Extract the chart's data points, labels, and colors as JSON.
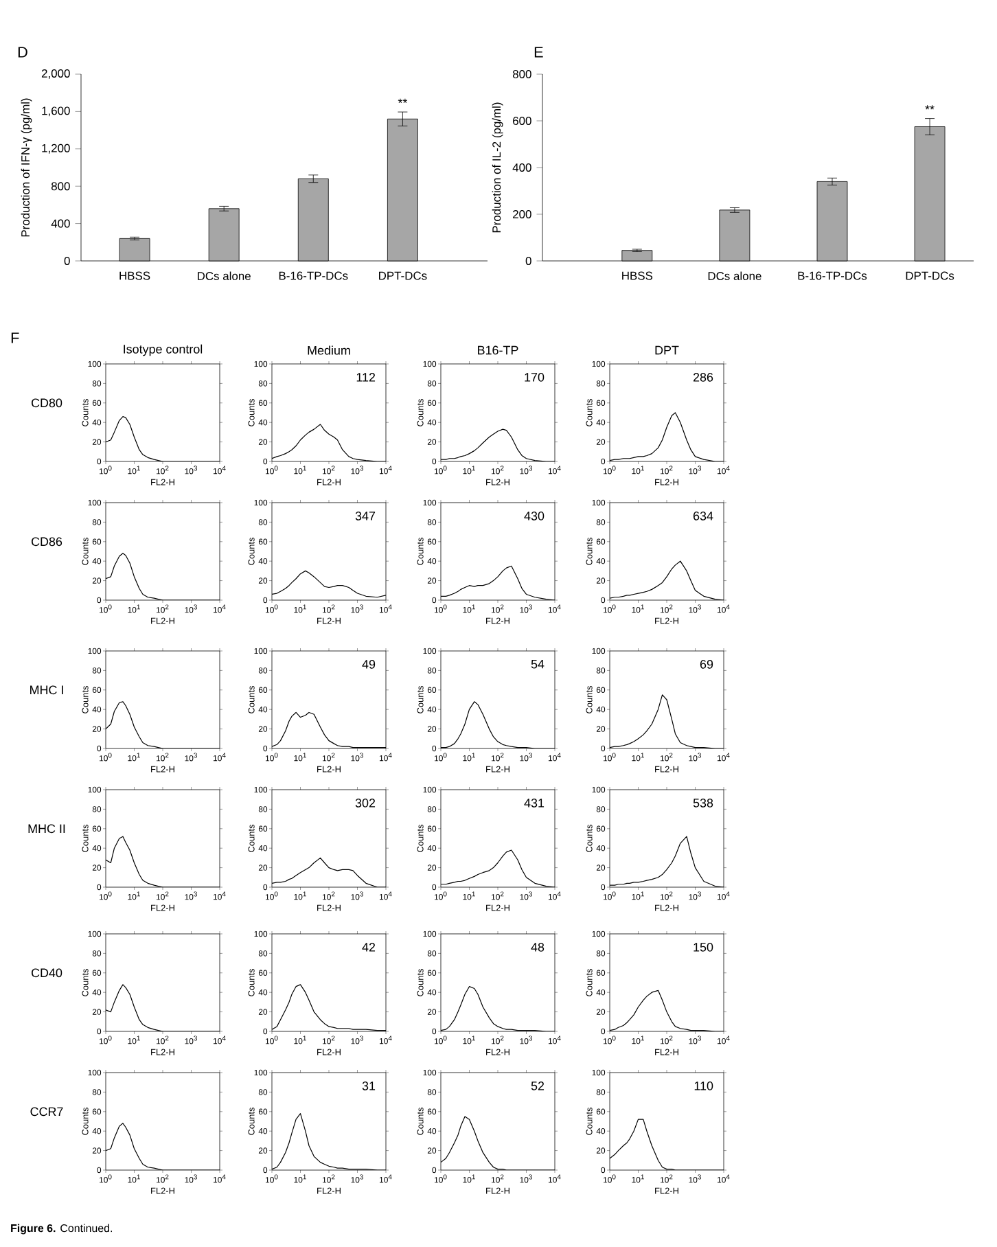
{
  "chart_data": [
    {
      "type": "bar",
      "title": "D",
      "categories": [
        "HBSS",
        "DCs alone",
        "B-16-TP-DCs",
        "DPT-DCs"
      ],
      "values": [
        240,
        560,
        880,
        1520
      ],
      "errors": [
        15,
        25,
        40,
        75
      ],
      "color": "#a6a6a6",
      "ylabel": "Production of IFN-γ (pg/ml)",
      "ylim": [
        0,
        2000
      ],
      "yticks": [
        0,
        400,
        800,
        {
          "value": 1200,
          "label": "1,200"
        },
        {
          "value": 1600,
          "label": "1,600"
        },
        {
          "value": 2000,
          "label": "2,000"
        }
      ],
      "annotations": [
        "**"
      ]
    },
    {
      "type": "bar",
      "title": "E",
      "categories": [
        "HBSS",
        "DCs alone",
        "B-16-TP-DCs",
        "DPT-DCs"
      ],
      "values": [
        45,
        218,
        340,
        575
      ],
      "errors": [
        5,
        10,
        15,
        35
      ],
      "color": "#a6a6a6",
      "ylabel": "Production of IL-2 (pg/ml)",
      "ylim": [
        0,
        800
      ],
      "yticks": [
        0,
        200,
        400,
        600,
        800
      ],
      "annotations": [
        "**"
      ]
    },
    {
      "type": "line",
      "title": "Isotype control",
      "annotations": [
        "CD80",
        "F"
      ],
      "x": [
        1,
        1.5,
        2,
        3,
        4,
        5,
        7,
        10,
        15,
        20,
        30,
        50,
        70,
        100,
        150,
        200,
        300,
        500,
        700,
        1000,
        2000,
        5000,
        10000
      ],
      "values": [
        20,
        22,
        30,
        42,
        46,
        45,
        38,
        25,
        12,
        7,
        4,
        2,
        1,
        0,
        0,
        0,
        0,
        0,
        0,
        0,
        0,
        0,
        0
      ],
      "color": "#000000",
      "xlabel": "FL2-H",
      "ylabel": "Counts",
      "log": "x",
      "xlim": [
        1,
        10000
      ],
      "xticks": [
        {
          "value": 1,
          "label": "10$^{0}$"
        },
        {
          "value": 10,
          "label": "10$^{1}$"
        },
        {
          "value": 100,
          "label": "10$^{2}$"
        },
        {
          "value": 1000,
          "label": "10$^{3}$"
        },
        {
          "value": 10000,
          "label": "10$^{4}$"
        }
      ],
      "ylim": [
        0,
        100
      ],
      "yticks": [
        0,
        20,
        40,
        60,
        80,
        100
      ]
    },
    {
      "type": "line",
      "title": "Medium",
      "annotations": [
        "112"
      ],
      "x": [
        1,
        1.5,
        2,
        3,
        4,
        5,
        7,
        10,
        15,
        20,
        30,
        50,
        70,
        100,
        150,
        200,
        300,
        500,
        700,
        1000,
        2000,
        5000,
        10000
      ],
      "values": [
        3,
        5,
        6,
        8,
        10,
        12,
        16,
        22,
        27,
        30,
        33,
        38,
        32,
        28,
        25,
        22,
        12,
        5,
        3,
        2,
        1,
        0,
        0
      ],
      "color": "#000000",
      "xlabel": "FL2-H",
      "ylabel": "Counts",
      "log": "x",
      "xlim": [
        1,
        10000
      ],
      "xticks": [
        {
          "value": 1,
          "label": "10$^{0}$"
        },
        {
          "value": 10,
          "label": "10$^{1}$"
        },
        {
          "value": 100,
          "label": "10$^{2}$"
        },
        {
          "value": 1000,
          "label": "10$^{3}$"
        },
        {
          "value": 10000,
          "label": "10$^{4}$"
        }
      ],
      "ylim": [
        0,
        100
      ],
      "yticks": [
        0,
        20,
        40,
        60,
        80,
        100
      ]
    },
    {
      "type": "line",
      "title": "B16-TP",
      "annotations": [
        "170"
      ],
      "x": [
        1,
        1.5,
        2,
        3,
        4,
        5,
        7,
        10,
        15,
        20,
        30,
        50,
        70,
        100,
        150,
        200,
        300,
        500,
        700,
        1000,
        2000,
        5000,
        10000
      ],
      "values": [
        2,
        2,
        3,
        3,
        4,
        5,
        6,
        8,
        11,
        14,
        19,
        25,
        28,
        31,
        33,
        32,
        25,
        12,
        6,
        3,
        1,
        0,
        0
      ],
      "color": "#000000",
      "xlabel": "FL2-H",
      "ylabel": "Counts",
      "log": "x",
      "xlim": [
        1,
        10000
      ],
      "xticks": [
        {
          "value": 1,
          "label": "10$^{0}$"
        },
        {
          "value": 10,
          "label": "10$^{1}$"
        },
        {
          "value": 100,
          "label": "10$^{2}$"
        },
        {
          "value": 1000,
          "label": "10$^{3}$"
        },
        {
          "value": 10000,
          "label": "10$^{4}$"
        }
      ],
      "ylim": [
        0,
        100
      ],
      "yticks": [
        0,
        20,
        40,
        60,
        80,
        100
      ]
    },
    {
      "type": "line",
      "title": "DPT",
      "annotations": [
        "286"
      ],
      "x": [
        1,
        1.5,
        2,
        3,
        4,
        5,
        7,
        10,
        15,
        20,
        30,
        50,
        70,
        100,
        150,
        200,
        300,
        500,
        700,
        1000,
        2000,
        5000,
        10000
      ],
      "values": [
        1,
        2,
        2,
        3,
        3,
        3,
        4,
        5,
        5,
        6,
        8,
        14,
        22,
        35,
        47,
        50,
        40,
        22,
        12,
        5,
        2,
        0,
        0
      ],
      "color": "#000000",
      "xlabel": "FL2-H",
      "ylabel": "Counts",
      "log": "x",
      "xlim": [
        1,
        10000
      ],
      "xticks": [
        {
          "value": 1,
          "label": "10$^{0}$"
        },
        {
          "value": 10,
          "label": "10$^{1}$"
        },
        {
          "value": 100,
          "label": "10$^{2}$"
        },
        {
          "value": 1000,
          "label": "10$^{3}$"
        },
        {
          "value": 10000,
          "label": "10$^{4}$"
        }
      ],
      "ylim": [
        0,
        100
      ],
      "yticks": [
        0,
        20,
        40,
        60,
        80,
        100
      ]
    },
    {
      "type": "line",
      "annotations": [
        "CD86"
      ],
      "x": [
        1,
        1.5,
        2,
        3,
        4,
        5,
        7,
        10,
        15,
        20,
        30,
        50,
        70,
        100,
        150,
        200,
        300,
        500,
        700,
        1000,
        2000,
        5000,
        10000
      ],
      "values": [
        22,
        24,
        35,
        45,
        48,
        46,
        38,
        24,
        12,
        6,
        3,
        2,
        1,
        0,
        0,
        0,
        0,
        0,
        0,
        0,
        0,
        0,
        0
      ],
      "color": "#000000",
      "xlabel": "FL2-H",
      "ylabel": "Counts",
      "log": "x",
      "xlim": [
        1,
        10000
      ],
      "xticks": [
        {
          "value": 1,
          "label": "10$^{0}$"
        },
        {
          "value": 10,
          "label": "10$^{1}$"
        },
        {
          "value": 100,
          "label": "10$^{2}$"
        },
        {
          "value": 1000,
          "label": "10$^{3}$"
        },
        {
          "value": 10000,
          "label": "10$^{4}$"
        }
      ],
      "ylim": [
        0,
        100
      ],
      "yticks": [
        0,
        20,
        40,
        60,
        80,
        100
      ]
    },
    {
      "type": "line",
      "annotations": [
        "347"
      ],
      "x": [
        1,
        1.5,
        2,
        3,
        4,
        5,
        7,
        10,
        15,
        20,
        30,
        50,
        70,
        100,
        150,
        200,
        300,
        500,
        700,
        1000,
        2000,
        5000,
        10000
      ],
      "values": [
        6,
        7,
        9,
        12,
        15,
        18,
        22,
        27,
        30,
        28,
        24,
        18,
        14,
        13,
        14,
        15,
        15,
        13,
        10,
        7,
        4,
        3,
        5
      ],
      "color": "#000000",
      "xlabel": "FL2-H",
      "ylabel": "Counts",
      "log": "x",
      "xlim": [
        1,
        10000
      ],
      "xticks": [
        {
          "value": 1,
          "label": "10$^{0}$"
        },
        {
          "value": 10,
          "label": "10$^{1}$"
        },
        {
          "value": 100,
          "label": "10$^{2}$"
        },
        {
          "value": 1000,
          "label": "10$^{3}$"
        },
        {
          "value": 10000,
          "label": "10$^{4}$"
        }
      ],
      "ylim": [
        0,
        100
      ],
      "yticks": [
        0,
        20,
        40,
        60,
        80,
        100
      ]
    },
    {
      "type": "line",
      "annotations": [
        "430"
      ],
      "x": [
        1,
        1.5,
        2,
        3,
        4,
        5,
        7,
        10,
        15,
        20,
        30,
        50,
        70,
        100,
        150,
        200,
        300,
        500,
        700,
        1000,
        2000,
        5000,
        10000
      ],
      "values": [
        4,
        4,
        5,
        7,
        9,
        11,
        13,
        15,
        14,
        15,
        15,
        17,
        20,
        24,
        30,
        33,
        35,
        22,
        12,
        6,
        3,
        1,
        0
      ],
      "color": "#000000",
      "xlabel": "FL2-H",
      "ylabel": "Counts",
      "log": "x",
      "xlim": [
        1,
        10000
      ],
      "xticks": [
        {
          "value": 1,
          "label": "10$^{0}$"
        },
        {
          "value": 10,
          "label": "10$^{1}$"
        },
        {
          "value": 100,
          "label": "10$^{2}$"
        },
        {
          "value": 1000,
          "label": "10$^{3}$"
        },
        {
          "value": 10000,
          "label": "10$^{4}$"
        }
      ],
      "ylim": [
        0,
        100
      ],
      "yticks": [
        0,
        20,
        40,
        60,
        80,
        100
      ]
    },
    {
      "type": "line",
      "annotations": [
        "634"
      ],
      "x": [
        1,
        1.5,
        2,
        3,
        4,
        5,
        7,
        10,
        15,
        20,
        30,
        50,
        70,
        100,
        150,
        200,
        300,
        500,
        700,
        1000,
        2000,
        5000,
        10000
      ],
      "values": [
        2,
        3,
        3,
        4,
        5,
        5,
        6,
        7,
        8,
        9,
        11,
        15,
        18,
        24,
        32,
        36,
        40,
        30,
        20,
        10,
        4,
        1,
        0
      ],
      "color": "#000000",
      "xlabel": "FL2-H",
      "ylabel": "Counts",
      "log": "x",
      "xlim": [
        1,
        10000
      ],
      "xticks": [
        {
          "value": 1,
          "label": "10$^{0}$"
        },
        {
          "value": 10,
          "label": "10$^{1}$"
        },
        {
          "value": 100,
          "label": "10$^{2}$"
        },
        {
          "value": 1000,
          "label": "10$^{3}$"
        },
        {
          "value": 10000,
          "label": "10$^{4}$"
        }
      ],
      "ylim": [
        0,
        100
      ],
      "yticks": [
        0,
        20,
        40,
        60,
        80,
        100
      ]
    },
    {
      "type": "line",
      "annotations": [
        "MHC I"
      ],
      "x": [
        1,
        1.5,
        2,
        3,
        4,
        5,
        7,
        10,
        15,
        20,
        30,
        50,
        70,
        100,
        150,
        200,
        300,
        500,
        700,
        1000,
        2000,
        5000,
        10000
      ],
      "values": [
        20,
        25,
        38,
        47,
        48,
        44,
        35,
        22,
        12,
        6,
        3,
        2,
        1,
        0,
        0,
        0,
        0,
        0,
        0,
        0,
        0,
        0,
        0
      ],
      "color": "#000000",
      "xlabel": "FL2-H",
      "ylabel": "Counts",
      "log": "x",
      "xlim": [
        1,
        10000
      ],
      "xticks": [
        {
          "value": 1,
          "label": "10$^{0}$"
        },
        {
          "value": 10,
          "label": "10$^{1}$"
        },
        {
          "value": 100,
          "label": "10$^{2}$"
        },
        {
          "value": 1000,
          "label": "10$^{3}$"
        },
        {
          "value": 10000,
          "label": "10$^{4}$"
        }
      ],
      "ylim": [
        0,
        100
      ],
      "yticks": [
        0,
        20,
        40,
        60,
        80,
        100
      ]
    },
    {
      "type": "line",
      "annotations": [
        "49"
      ],
      "x": [
        1,
        1.5,
        2,
        3,
        4,
        5,
        7,
        10,
        15,
        20,
        30,
        50,
        70,
        100,
        150,
        200,
        300,
        500,
        700,
        1000,
        2000,
        5000,
        10000
      ],
      "values": [
        2,
        4,
        8,
        18,
        28,
        33,
        37,
        32,
        34,
        37,
        35,
        22,
        14,
        8,
        5,
        3,
        2,
        2,
        1,
        1,
        1,
        1,
        1
      ],
      "color": "#000000",
      "xlabel": "FL2-H",
      "ylabel": "Counts",
      "log": "x",
      "xlim": [
        1,
        10000
      ],
      "xticks": [
        {
          "value": 1,
          "label": "10$^{0}$"
        },
        {
          "value": 10,
          "label": "10$^{1}$"
        },
        {
          "value": 100,
          "label": "10$^{2}$"
        },
        {
          "value": 1000,
          "label": "10$^{3}$"
        },
        {
          "value": 10000,
          "label": "10$^{4}$"
        }
      ],
      "ylim": [
        0,
        100
      ],
      "yticks": [
        0,
        20,
        40,
        60,
        80,
        100
      ]
    },
    {
      "type": "line",
      "annotations": [
        "54"
      ],
      "x": [
        1,
        1.5,
        2,
        3,
        4,
        5,
        7,
        10,
        15,
        20,
        30,
        50,
        70,
        100,
        150,
        200,
        300,
        500,
        700,
        1000,
        2000,
        5000,
        10000
      ],
      "values": [
        1,
        1,
        2,
        5,
        10,
        15,
        25,
        40,
        48,
        45,
        35,
        20,
        12,
        7,
        4,
        3,
        2,
        1,
        1,
        1,
        0,
        0,
        0
      ],
      "color": "#000000",
      "xlabel": "FL2-H",
      "ylabel": "Counts",
      "log": "x",
      "xlim": [
        1,
        10000
      ],
      "xticks": [
        {
          "value": 1,
          "label": "10$^{0}$"
        },
        {
          "value": 10,
          "label": "10$^{1}$"
        },
        {
          "value": 100,
          "label": "10$^{2}$"
        },
        {
          "value": 1000,
          "label": "10$^{3}$"
        },
        {
          "value": 10000,
          "label": "10$^{4}$"
        }
      ],
      "ylim": [
        0,
        100
      ],
      "yticks": [
        0,
        20,
        40,
        60,
        80,
        100
      ]
    },
    {
      "type": "line",
      "annotations": [
        "69"
      ],
      "x": [
        1,
        1.5,
        2,
        3,
        4,
        5,
        7,
        10,
        15,
        20,
        30,
        50,
        70,
        100,
        150,
        200,
        300,
        500,
        700,
        1000,
        2000,
        5000,
        10000
      ],
      "values": [
        1,
        2,
        2,
        3,
        4,
        5,
        7,
        10,
        14,
        18,
        25,
        40,
        55,
        50,
        30,
        15,
        6,
        3,
        2,
        1,
        1,
        0,
        0
      ],
      "color": "#000000",
      "xlabel": "FL2-H",
      "ylabel": "Counts",
      "log": "x",
      "xlim": [
        1,
        10000
      ],
      "xticks": [
        {
          "value": 1,
          "label": "10$^{0}$"
        },
        {
          "value": 10,
          "label": "10$^{1}$"
        },
        {
          "value": 100,
          "label": "10$^{2}$"
        },
        {
          "value": 1000,
          "label": "10$^{3}$"
        },
        {
          "value": 10000,
          "label": "10$^{4}$"
        }
      ],
      "ylim": [
        0,
        100
      ],
      "yticks": [
        0,
        20,
        40,
        60,
        80,
        100
      ]
    },
    {
      "type": "line",
      "annotations": [
        "MHC II"
      ],
      "x": [
        1,
        1.5,
        2,
        3,
        4,
        5,
        7,
        10,
        15,
        20,
        30,
        50,
        70,
        100,
        150,
        200,
        300,
        500,
        700,
        1000,
        2000,
        5000,
        10000
      ],
      "values": [
        28,
        25,
        40,
        50,
        52,
        46,
        38,
        25,
        13,
        7,
        4,
        2,
        1,
        0,
        0,
        0,
        0,
        0,
        0,
        0,
        0,
        0,
        0
      ],
      "color": "#000000",
      "xlabel": "FL2-H",
      "ylabel": "Counts",
      "log": "x",
      "xlim": [
        1,
        10000
      ],
      "xticks": [
        {
          "value": 1,
          "label": "10$^{0}$"
        },
        {
          "value": 10,
          "label": "10$^{1}$"
        },
        {
          "value": 100,
          "label": "10$^{2}$"
        },
        {
          "value": 1000,
          "label": "10$^{3}$"
        },
        {
          "value": 10000,
          "label": "10$^{4}$"
        }
      ],
      "ylim": [
        0,
        100
      ],
      "yticks": [
        0,
        20,
        40,
        60,
        80,
        100
      ]
    },
    {
      "type": "line",
      "annotations": [
        "302"
      ],
      "x": [
        1,
        1.5,
        2,
        3,
        4,
        5,
        7,
        10,
        15,
        20,
        30,
        50,
        70,
        100,
        150,
        200,
        300,
        500,
        700,
        1000,
        2000,
        5000,
        10000
      ],
      "values": [
        4,
        5,
        5,
        6,
        8,
        9,
        12,
        15,
        18,
        20,
        25,
        30,
        25,
        20,
        18,
        17,
        18,
        18,
        17,
        12,
        4,
        0,
        0
      ],
      "color": "#000000",
      "xlabel": "FL2-H",
      "ylabel": "Counts",
      "log": "x",
      "xlim": [
        1,
        10000
      ],
      "xticks": [
        {
          "value": 1,
          "label": "10$^{0}$"
        },
        {
          "value": 10,
          "label": "10$^{1}$"
        },
        {
          "value": 100,
          "label": "10$^{2}$"
        },
        {
          "value": 1000,
          "label": "10$^{3}$"
        },
        {
          "value": 10000,
          "label": "10$^{4}$"
        }
      ],
      "ylim": [
        0,
        100
      ],
      "yticks": [
        0,
        20,
        40,
        60,
        80,
        100
      ]
    },
    {
      "type": "line",
      "annotations": [
        "431"
      ],
      "x": [
        1,
        1.5,
        2,
        3,
        4,
        5,
        7,
        10,
        15,
        20,
        30,
        50,
        70,
        100,
        150,
        200,
        300,
        500,
        700,
        1000,
        2000,
        5000,
        10000
      ],
      "values": [
        3,
        3,
        4,
        5,
        6,
        6,
        7,
        9,
        11,
        13,
        15,
        17,
        20,
        25,
        32,
        36,
        38,
        28,
        18,
        10,
        4,
        1,
        0
      ],
      "color": "#000000",
      "xlabel": "FL2-H",
      "ylabel": "Counts",
      "log": "x",
      "xlim": [
        1,
        10000
      ],
      "xticks": [
        {
          "value": 1,
          "label": "10$^{0}$"
        },
        {
          "value": 10,
          "label": "10$^{1}$"
        },
        {
          "value": 100,
          "label": "10$^{2}$"
        },
        {
          "value": 1000,
          "label": "10$^{3}$"
        },
        {
          "value": 10000,
          "label": "10$^{4}$"
        }
      ],
      "ylim": [
        0,
        100
      ],
      "yticks": [
        0,
        20,
        40,
        60,
        80,
        100
      ]
    },
    {
      "type": "line",
      "annotations": [
        "538"
      ],
      "x": [
        1,
        1.5,
        2,
        3,
        4,
        5,
        7,
        10,
        15,
        20,
        30,
        50,
        70,
        100,
        150,
        200,
        300,
        500,
        700,
        1000,
        2000,
        5000,
        10000
      ],
      "values": [
        2,
        2,
        3,
        3,
        4,
        4,
        5,
        5,
        6,
        7,
        8,
        10,
        13,
        18,
        25,
        32,
        45,
        52,
        35,
        20,
        6,
        1,
        0
      ],
      "color": "#000000",
      "xlabel": "FL2-H",
      "ylabel": "Counts",
      "log": "x",
      "xlim": [
        1,
        10000
      ],
      "xticks": [
        {
          "value": 1,
          "label": "10$^{0}$"
        },
        {
          "value": 10,
          "label": "10$^{1}$"
        },
        {
          "value": 100,
          "label": "10$^{2}$"
        },
        {
          "value": 1000,
          "label": "10$^{3}$"
        },
        {
          "value": 10000,
          "label": "10$^{4}$"
        }
      ],
      "ylim": [
        0,
        100
      ],
      "yticks": [
        0,
        20,
        40,
        60,
        80,
        100
      ]
    },
    {
      "type": "line",
      "annotations": [
        "CD40"
      ],
      "x": [
        1,
        1.5,
        2,
        3,
        4,
        5,
        7,
        10,
        15,
        20,
        30,
        50,
        70,
        100,
        150,
        200,
        300,
        500,
        700,
        1000,
        2000,
        5000,
        10000
      ],
      "values": [
        22,
        20,
        30,
        42,
        48,
        45,
        38,
        25,
        12,
        7,
        4,
        2,
        1,
        0,
        0,
        0,
        0,
        0,
        0,
        0,
        0,
        0,
        0
      ],
      "color": "#000000",
      "xlabel": "FL2-H",
      "ylabel": "Counts",
      "log": "x",
      "xlim": [
        1,
        10000
      ],
      "xticks": [
        {
          "value": 1,
          "label": "10$^{0}$"
        },
        {
          "value": 10,
          "label": "10$^{1}$"
        },
        {
          "value": 100,
          "label": "10$^{2}$"
        },
        {
          "value": 1000,
          "label": "10$^{3}$"
        },
        {
          "value": 10000,
          "label": "10$^{4}$"
        }
      ],
      "ylim": [
        0,
        100
      ],
      "yticks": [
        0,
        20,
        40,
        60,
        80,
        100
      ]
    },
    {
      "type": "line",
      "annotations": [
        "42"
      ],
      "x": [
        1,
        1.5,
        2,
        3,
        4,
        5,
        7,
        10,
        15,
        20,
        30,
        50,
        70,
        100,
        150,
        200,
        300,
        500,
        700,
        1000,
        2000,
        5000,
        10000
      ],
      "values": [
        2,
        5,
        12,
        22,
        30,
        38,
        46,
        48,
        40,
        32,
        20,
        12,
        8,
        5,
        4,
        3,
        3,
        3,
        2,
        2,
        2,
        1,
        1
      ],
      "color": "#000000",
      "xlabel": "FL2-H",
      "ylabel": "Counts",
      "log": "x",
      "xlim": [
        1,
        10000
      ],
      "xticks": [
        {
          "value": 1,
          "label": "10$^{0}$"
        },
        {
          "value": 10,
          "label": "10$^{1}$"
        },
        {
          "value": 100,
          "label": "10$^{2}$"
        },
        {
          "value": 1000,
          "label": "10$^{3}$"
        },
        {
          "value": 10000,
          "label": "10$^{4}$"
        }
      ],
      "ylim": [
        0,
        100
      ],
      "yticks": [
        0,
        20,
        40,
        60,
        80,
        100
      ]
    },
    {
      "type": "line",
      "annotations": [
        "48"
      ],
      "x": [
        1,
        1.5,
        2,
        3,
        4,
        5,
        7,
        10,
        15,
        20,
        30,
        50,
        70,
        100,
        150,
        200,
        300,
        500,
        700,
        1000,
        2000,
        5000,
        10000
      ],
      "values": [
        1,
        2,
        5,
        12,
        20,
        27,
        38,
        46,
        44,
        38,
        25,
        14,
        8,
        5,
        3,
        2,
        2,
        1,
        1,
        1,
        1,
        0,
        0
      ],
      "color": "#000000",
      "xlabel": "FL2-H",
      "ylabel": "Counts",
      "log": "x",
      "xlim": [
        1,
        10000
      ],
      "xticks": [
        {
          "value": 1,
          "label": "10$^{0}$"
        },
        {
          "value": 10,
          "label": "10$^{1}$"
        },
        {
          "value": 100,
          "label": "10$^{2}$"
        },
        {
          "value": 1000,
          "label": "10$^{3}$"
        },
        {
          "value": 10000,
          "label": "10$^{4}$"
        }
      ],
      "ylim": [
        0,
        100
      ],
      "yticks": [
        0,
        20,
        40,
        60,
        80,
        100
      ]
    },
    {
      "type": "line",
      "annotations": [
        "150"
      ],
      "x": [
        1,
        1.5,
        2,
        3,
        4,
        5,
        7,
        10,
        15,
        20,
        30,
        50,
        70,
        100,
        150,
        200,
        300,
        500,
        700,
        1000,
        2000,
        5000,
        10000
      ],
      "values": [
        1,
        2,
        4,
        6,
        9,
        12,
        17,
        25,
        32,
        36,
        40,
        42,
        32,
        20,
        10,
        5,
        3,
        2,
        1,
        1,
        1,
        0,
        0
      ],
      "color": "#000000",
      "xlabel": "FL2-H",
      "ylabel": "Counts",
      "log": "x",
      "xlim": [
        1,
        10000
      ],
      "xticks": [
        {
          "value": 1,
          "label": "10$^{0}$"
        },
        {
          "value": 10,
          "label": "10$^{1}$"
        },
        {
          "value": 100,
          "label": "10$^{2}$"
        },
        {
          "value": 1000,
          "label": "10$^{3}$"
        },
        {
          "value": 10000,
          "label": "10$^{4}$"
        }
      ],
      "ylim": [
        0,
        100
      ],
      "yticks": [
        0,
        20,
        40,
        60,
        80,
        100
      ]
    },
    {
      "type": "line",
      "annotations": [
        "CCR7",
        "**Figure 6.** Continued."
      ],
      "x": [
        1,
        1.5,
        2,
        3,
        4,
        5,
        7,
        10,
        15,
        20,
        30,
        50,
        70,
        100,
        150,
        200,
        300,
        500,
        700,
        1000,
        2000,
        5000,
        10000
      ],
      "values": [
        20,
        22,
        33,
        45,
        48,
        44,
        36,
        22,
        12,
        6,
        3,
        2,
        1,
        0,
        0,
        0,
        0,
        0,
        0,
        0,
        0,
        0,
        0
      ],
      "color": "#000000",
      "xlabel": "FL2-H",
      "ylabel": "Counts",
      "log": "x",
      "xlim": [
        1,
        10000
      ],
      "xticks": [
        {
          "value": 1,
          "label": "10$^{0}$"
        },
        {
          "value": 10,
          "label": "10$^{1}$"
        },
        {
          "value": 100,
          "label": "10$^{2}$"
        },
        {
          "value": 1000,
          "label": "10$^{3}$"
        },
        {
          "value": 10000,
          "label": "10$^{4}$"
        }
      ],
      "ylim": [
        0,
        100
      ],
      "yticks": [
        0,
        20,
        40,
        60,
        80,
        100
      ]
    },
    {
      "type": "line",
      "annotations": [
        "31"
      ],
      "x": [
        1,
        1.5,
        2,
        3,
        4,
        5,
        7,
        10,
        15,
        20,
        30,
        50,
        70,
        100,
        150,
        200,
        300,
        500,
        700,
        1000,
        2000,
        5000,
        10000
      ],
      "values": [
        1,
        3,
        8,
        18,
        28,
        38,
        52,
        58,
        40,
        25,
        14,
        8,
        6,
        4,
        3,
        2,
        2,
        1,
        1,
        1,
        1,
        0,
        0
      ],
      "color": "#000000",
      "xlabel": "FL2-H",
      "ylabel": "Counts",
      "log": "x",
      "xlim": [
        1,
        10000
      ],
      "xticks": [
        {
          "value": 1,
          "label": "10$^{0}$"
        },
        {
          "value": 10,
          "label": "10$^{1}$"
        },
        {
          "value": 100,
          "label": "10$^{2}$"
        },
        {
          "value": 1000,
          "label": "10$^{3}$"
        },
        {
          "value": 10000,
          "label": "10$^{4}$"
        }
      ],
      "ylim": [
        0,
        100
      ],
      "yticks": [
        0,
        20,
        40,
        60,
        80,
        100
      ]
    },
    {
      "type": "line",
      "annotations": [
        "52"
      ],
      "x": [
        1,
        1.5,
        2,
        3,
        4,
        5,
        7,
        10,
        15,
        20,
        30,
        50,
        70,
        100,
        150,
        200,
        300,
        500,
        700,
        1000,
        2000,
        5000,
        10000
      ],
      "values": [
        8,
        12,
        18,
        28,
        36,
        45,
        55,
        52,
        40,
        30,
        18,
        8,
        3,
        1,
        1,
        0,
        0,
        0,
        0,
        0,
        0,
        0,
        0
      ],
      "color": "#000000",
      "xlabel": "FL2-H",
      "ylabel": "Counts",
      "log": "x",
      "xlim": [
        1,
        10000
      ],
      "xticks": [
        {
          "value": 1,
          "label": "10$^{0}$"
        },
        {
          "value": 10,
          "label": "10$^{1}$"
        },
        {
          "value": 100,
          "label": "10$^{2}$"
        },
        {
          "value": 1000,
          "label": "10$^{3}$"
        },
        {
          "value": 10000,
          "label": "10$^{4}$"
        }
      ],
      "ylim": [
        0,
        100
      ],
      "yticks": [
        0,
        20,
        40,
        60,
        80,
        100
      ]
    },
    {
      "type": "line",
      "annotations": [
        "110"
      ],
      "x": [
        1,
        1.5,
        2,
        3,
        4,
        5,
        7,
        10,
        15,
        20,
        30,
        50,
        70,
        100,
        150,
        200,
        300,
        500,
        700,
        1000,
        2000,
        5000,
        10000
      ],
      "values": [
        12,
        16,
        20,
        25,
        28,
        32,
        40,
        52,
        52,
        40,
        25,
        10,
        3,
        1,
        1,
        0,
        0,
        0,
        0,
        0,
        0,
        0,
        0
      ],
      "color": "#000000",
      "xlabel": "FL2-H",
      "ylabel": "Counts",
      "log": "x",
      "xlim": [
        1,
        10000
      ],
      "xticks": [
        {
          "value": 1,
          "label": "10$^{0}$"
        },
        {
          "value": 10,
          "label": "10$^{1}$"
        },
        {
          "value": 100,
          "label": "10$^{2}$"
        },
        {
          "value": 1000,
          "label": "10$^{3}$"
        },
        {
          "value": 10000,
          "label": "10$^{4}$"
        }
      ],
      "ylim": [
        0,
        100
      ],
      "yticks": [
        0,
        20,
        40,
        60,
        80,
        100
      ]
    }
  ]
}
